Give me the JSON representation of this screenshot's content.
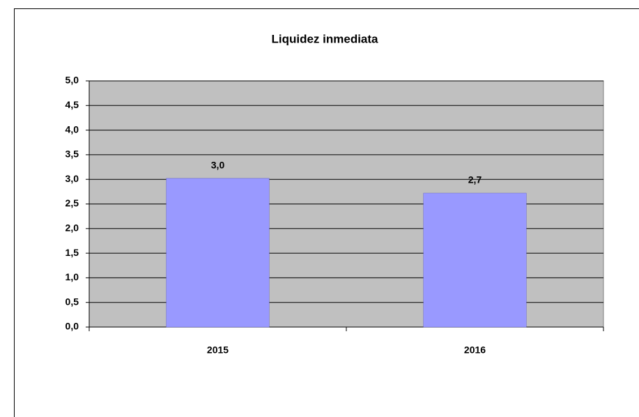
{
  "chart_data": {
    "type": "bar",
    "title": "Liquidez inmediata",
    "categories": [
      "2015",
      "2016"
    ],
    "values": [
      3.02,
      2.72
    ],
    "value_labels": [
      "3,0",
      "2,7"
    ],
    "color": "#9999ff",
    "ylim": [
      0,
      5
    ],
    "yticks": [
      {
        "value": 0,
        "label": "0,0"
      },
      {
        "value": 0.5,
        "label": "0,5"
      },
      {
        "value": 1,
        "label": "1,0"
      },
      {
        "value": 1.5,
        "label": "1,5"
      },
      {
        "value": 2,
        "label": "2,0"
      },
      {
        "value": 2.5,
        "label": "2,5"
      },
      {
        "value": 3,
        "label": "3,0"
      },
      {
        "value": 3.5,
        "label": "3,5"
      },
      {
        "value": 4,
        "label": "4,0"
      },
      {
        "value": 4.5,
        "label": "4,5"
      },
      {
        "value": 5,
        "label": "5,0"
      }
    ],
    "grid": true
  }
}
